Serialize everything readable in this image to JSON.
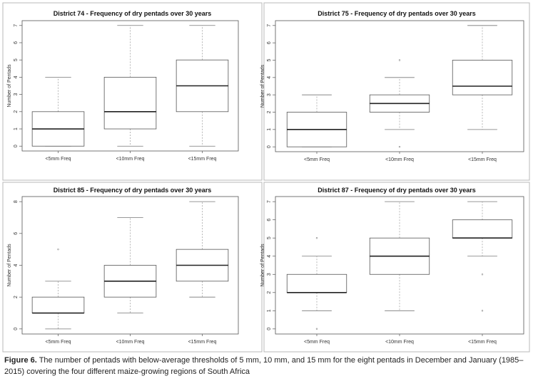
{
  "caption": {
    "label": "Figure 6.",
    "text": " The number of pentads with below-average thresholds of 5 mm, 10 mm, and 15 mm for the eight pentads in December and January (1985–2015) covering the four different maize-growing regions of South Africa"
  },
  "chart_data": [
    {
      "type": "box",
      "title": "District  74  - Frequency of dry pentads over 30 years",
      "ylabel": "Number of Pentads",
      "xlabel": "",
      "ylim": [
        0,
        7
      ],
      "yticks": [
        0,
        1,
        2,
        3,
        4,
        5,
        6,
        7
      ],
      "categories": [
        "<5mm Freq",
        "<10mm Freq",
        "<15mm Freq"
      ],
      "boxes": [
        {
          "min": 0,
          "q1": 0,
          "median": 1,
          "q3": 2,
          "max": 4,
          "outliers": []
        },
        {
          "min": 0,
          "q1": 1,
          "median": 2,
          "q3": 4,
          "max": 7,
          "outliers": []
        },
        {
          "min": 0,
          "q1": 2,
          "median": 3.5,
          "q3": 5,
          "max": 7,
          "outliers": []
        }
      ]
    },
    {
      "type": "box",
      "title": "District  75  - Frequency of dry pentads over 30 years",
      "ylabel": "Number of Pentads",
      "xlabel": "",
      "ylim": [
        0,
        7
      ],
      "yticks": [
        0,
        1,
        2,
        3,
        4,
        5,
        6,
        7
      ],
      "categories": [
        "<5mm Freq",
        "<10mm Freq",
        "<15mm Freq"
      ],
      "boxes": [
        {
          "min": 0,
          "q1": 0,
          "median": 1,
          "q3": 2,
          "max": 3,
          "outliers": []
        },
        {
          "min": 1,
          "q1": 2,
          "median": 2.5,
          "q3": 3,
          "max": 4,
          "outliers": [
            0,
            5
          ]
        },
        {
          "min": 1,
          "q1": 3,
          "median": 3.5,
          "q3": 5,
          "max": 7,
          "outliers": []
        }
      ]
    },
    {
      "type": "box",
      "title": "District  85  - Frequency of dry pentads over 30 years",
      "ylabel": "Number of Pentads",
      "xlabel": "",
      "ylim": [
        0,
        8
      ],
      "yticks": [
        0,
        2,
        4,
        6,
        8
      ],
      "categories": [
        "<5mm Freq",
        "<10mm Freq",
        "<15mm Freq"
      ],
      "boxes": [
        {
          "min": 0,
          "q1": 1,
          "median": 1,
          "q3": 2,
          "max": 3,
          "outliers": [
            5
          ]
        },
        {
          "min": 1,
          "q1": 2,
          "median": 3,
          "q3": 4,
          "max": 7,
          "outliers": []
        },
        {
          "min": 2,
          "q1": 3,
          "median": 4,
          "q3": 5,
          "max": 8,
          "outliers": []
        }
      ]
    },
    {
      "type": "box",
      "title": "District  87  - Frequency of dry pentads over 30 years",
      "ylabel": "Number of Pentads",
      "xlabel": "",
      "ylim": [
        0,
        7
      ],
      "yticks": [
        0,
        1,
        2,
        3,
        4,
        5,
        6,
        7
      ],
      "categories": [
        "<5mm Freq",
        "<10mm Freq",
        "<15mm Freq"
      ],
      "boxes": [
        {
          "min": 1,
          "q1": 2,
          "median": 2,
          "q3": 3,
          "max": 4,
          "outliers": [
            0,
            5
          ]
        },
        {
          "min": 1,
          "q1": 3,
          "median": 4,
          "q3": 5,
          "max": 7,
          "outliers": []
        },
        {
          "min": 4,
          "q1": 5,
          "median": 5,
          "q3": 6,
          "max": 7,
          "outliers": [
            1,
            3
          ]
        }
      ]
    }
  ]
}
